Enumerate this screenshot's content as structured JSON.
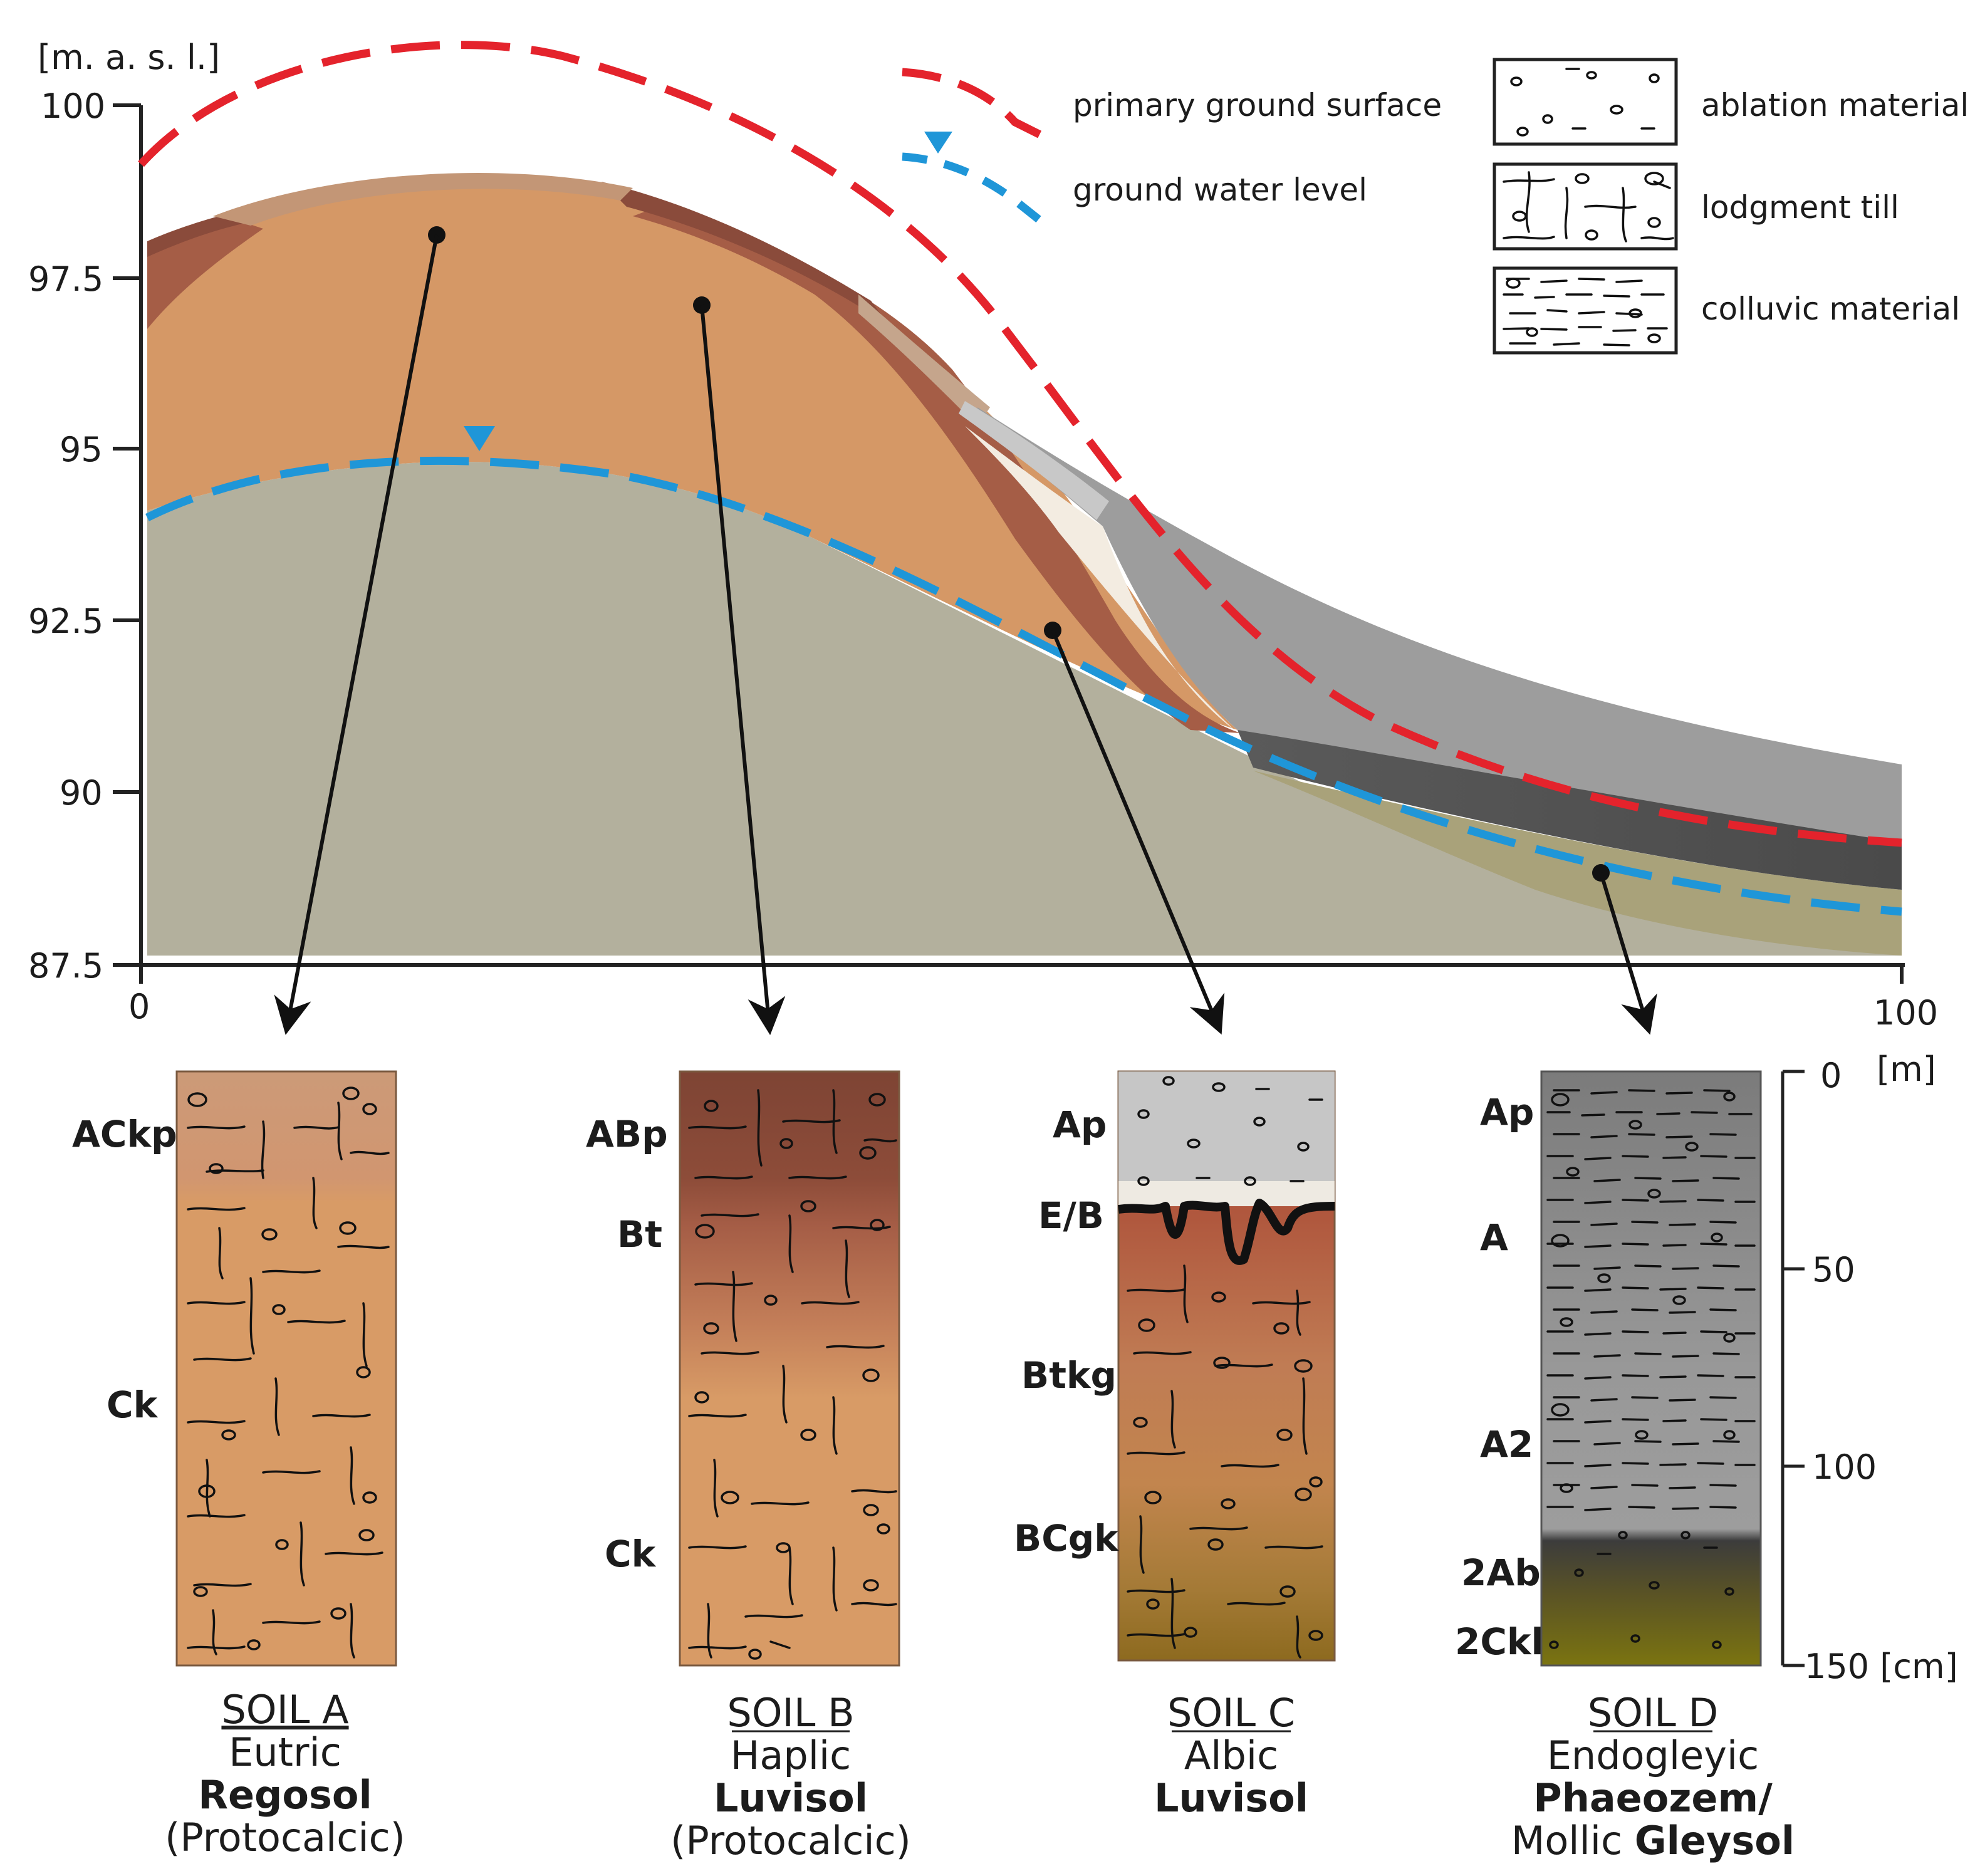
{
  "axis": {
    "y_unit": "[m. a. s. l.]",
    "y_ticks": [
      "100",
      "97.5",
      "95",
      "92.5",
      "90",
      "87.5"
    ],
    "x_ticks": [
      "0",
      "100"
    ],
    "x_unit": "[m]"
  },
  "legend": {
    "primary_surface": "primary ground surface",
    "ground_water": "ground water level",
    "ablation": "ablation material",
    "lodgment": "lodgment till",
    "colluvic": "colluvic material"
  },
  "depth_scale": {
    "ticks": [
      "0",
      "50",
      "100",
      "150 [cm]"
    ]
  },
  "soils": [
    {
      "title": "SOIL A",
      "line1": "Eutric",
      "line2": "Regosol",
      "line3": "(Protocalcic)",
      "horizons": [
        "ACkp",
        "Ck"
      ]
    },
    {
      "title": "SOIL B",
      "line1": "Haplic",
      "line2": "Luvisol",
      "line3": "(Protocalcic)",
      "horizons": [
        "ABp",
        "Bt",
        "Ck"
      ]
    },
    {
      "title": "SOIL C",
      "line1": "Albic",
      "line2": "Luvisol",
      "horizons": [
        "Ap",
        "E/B",
        "Btkg",
        "BCgk"
      ]
    },
    {
      "title": "SOIL D",
      "line1": "Endogleyic",
      "line2a": "Phaeozem/",
      "line3a": "Mollic ",
      "line3b": "Gleysol",
      "horizons": [
        "Ap",
        "A",
        "A2",
        "2Ab",
        "2Ckl"
      ]
    }
  ],
  "colors": {
    "red_line": "#e4232c",
    "blue_line": "#1f96d8",
    "glacial": "#b3b09d",
    "loess": "#d59866",
    "bt_layer": "#a55d46",
    "colluvium": "#9b9b9b",
    "dark_colluvium": "#5a5a5a"
  }
}
